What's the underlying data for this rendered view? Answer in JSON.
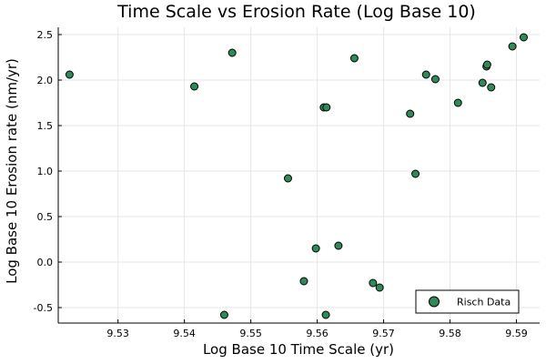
{
  "chart_data": {
    "type": "scatter",
    "title": "Time Scale vs Erosion Rate (Log Base 10)",
    "xlabel": "Log Base 10 Time Scale (yr)",
    "ylabel": "Log Base 10 Erosion rate (nm/yr)",
    "xlim": [
      9.521,
      9.5935
    ],
    "ylim": [
      -0.67,
      2.58
    ],
    "xticks": [
      9.53,
      9.54,
      9.55,
      9.56,
      9.57,
      9.58,
      9.59
    ],
    "xtick_labels": [
      "9.53",
      "9.54",
      "9.55",
      "9.56",
      "9.57",
      "9.58",
      "9.59"
    ],
    "yticks": [
      -0.5,
      0.0,
      0.5,
      1.0,
      1.5,
      2.0,
      2.5
    ],
    "ytick_labels": [
      "-0.5",
      "0.0",
      "0.5",
      "1.0",
      "1.5",
      "2.0",
      "2.5"
    ],
    "grid": true,
    "legend_position": "bottom-right",
    "series": [
      {
        "name": "Risch Data",
        "color": "#2e8b57",
        "edge_color": "#000000",
        "x": [
          9.5227,
          9.5415,
          9.5472,
          9.546,
          9.5556,
          9.558,
          9.5598,
          9.561,
          9.5614,
          9.5613,
          9.5632,
          9.5656,
          9.5684,
          9.5694,
          9.574,
          9.5748,
          9.5764,
          9.5778,
          9.5812,
          9.5849,
          9.5855,
          9.5856,
          9.5862,
          9.5894,
          9.5911
        ],
        "y": [
          2.06,
          1.93,
          2.3,
          -0.58,
          0.92,
          -0.21,
          0.15,
          1.7,
          1.7,
          -0.58,
          0.18,
          2.24,
          -0.23,
          -0.28,
          1.63,
          0.97,
          2.06,
          2.01,
          1.75,
          1.97,
          2.15,
          2.17,
          1.92,
          2.37,
          2.47
        ]
      }
    ]
  }
}
